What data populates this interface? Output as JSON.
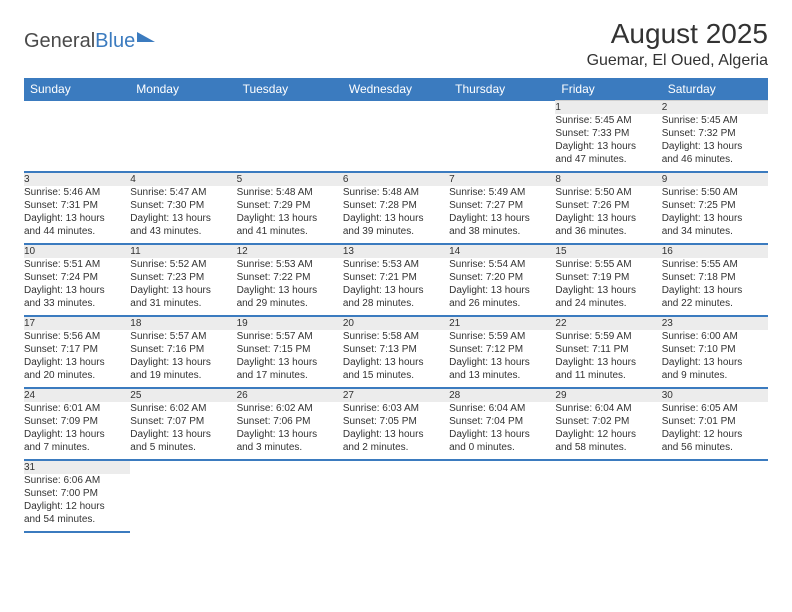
{
  "brand": {
    "word1": "General",
    "word2": "Blue"
  },
  "title": "August 2025",
  "location": "Guemar, El Oued, Algeria",
  "colors": {
    "header_bg": "#3b7bbf",
    "header_fg": "#ffffff",
    "daynum_bg": "#ececec",
    "row_divider": "#3b7bbf",
    "text": "#333333"
  },
  "day_headers": [
    "Sunday",
    "Monday",
    "Tuesday",
    "Wednesday",
    "Thursday",
    "Friday",
    "Saturday"
  ],
  "weeks": [
    {
      "nums": [
        "",
        "",
        "",
        "",
        "",
        "1",
        "2"
      ],
      "cells": [
        null,
        null,
        null,
        null,
        null,
        {
          "sunrise": "5:45 AM",
          "sunset": "7:33 PM",
          "dl1": "Daylight: 13 hours",
          "dl2": "and 47 minutes."
        },
        {
          "sunrise": "5:45 AM",
          "sunset": "7:32 PM",
          "dl1": "Daylight: 13 hours",
          "dl2": "and 46 minutes."
        }
      ]
    },
    {
      "nums": [
        "3",
        "4",
        "5",
        "6",
        "7",
        "8",
        "9"
      ],
      "cells": [
        {
          "sunrise": "5:46 AM",
          "sunset": "7:31 PM",
          "dl1": "Daylight: 13 hours",
          "dl2": "and 44 minutes."
        },
        {
          "sunrise": "5:47 AM",
          "sunset": "7:30 PM",
          "dl1": "Daylight: 13 hours",
          "dl2": "and 43 minutes."
        },
        {
          "sunrise": "5:48 AM",
          "sunset": "7:29 PM",
          "dl1": "Daylight: 13 hours",
          "dl2": "and 41 minutes."
        },
        {
          "sunrise": "5:48 AM",
          "sunset": "7:28 PM",
          "dl1": "Daylight: 13 hours",
          "dl2": "and 39 minutes."
        },
        {
          "sunrise": "5:49 AM",
          "sunset": "7:27 PM",
          "dl1": "Daylight: 13 hours",
          "dl2": "and 38 minutes."
        },
        {
          "sunrise": "5:50 AM",
          "sunset": "7:26 PM",
          "dl1": "Daylight: 13 hours",
          "dl2": "and 36 minutes."
        },
        {
          "sunrise": "5:50 AM",
          "sunset": "7:25 PM",
          "dl1": "Daylight: 13 hours",
          "dl2": "and 34 minutes."
        }
      ]
    },
    {
      "nums": [
        "10",
        "11",
        "12",
        "13",
        "14",
        "15",
        "16"
      ],
      "cells": [
        {
          "sunrise": "5:51 AM",
          "sunset": "7:24 PM",
          "dl1": "Daylight: 13 hours",
          "dl2": "and 33 minutes."
        },
        {
          "sunrise": "5:52 AM",
          "sunset": "7:23 PM",
          "dl1": "Daylight: 13 hours",
          "dl2": "and 31 minutes."
        },
        {
          "sunrise": "5:53 AM",
          "sunset": "7:22 PM",
          "dl1": "Daylight: 13 hours",
          "dl2": "and 29 minutes."
        },
        {
          "sunrise": "5:53 AM",
          "sunset": "7:21 PM",
          "dl1": "Daylight: 13 hours",
          "dl2": "and 28 minutes."
        },
        {
          "sunrise": "5:54 AM",
          "sunset": "7:20 PM",
          "dl1": "Daylight: 13 hours",
          "dl2": "and 26 minutes."
        },
        {
          "sunrise": "5:55 AM",
          "sunset": "7:19 PM",
          "dl1": "Daylight: 13 hours",
          "dl2": "and 24 minutes."
        },
        {
          "sunrise": "5:55 AM",
          "sunset": "7:18 PM",
          "dl1": "Daylight: 13 hours",
          "dl2": "and 22 minutes."
        }
      ]
    },
    {
      "nums": [
        "17",
        "18",
        "19",
        "20",
        "21",
        "22",
        "23"
      ],
      "cells": [
        {
          "sunrise": "5:56 AM",
          "sunset": "7:17 PM",
          "dl1": "Daylight: 13 hours",
          "dl2": "and 20 minutes."
        },
        {
          "sunrise": "5:57 AM",
          "sunset": "7:16 PM",
          "dl1": "Daylight: 13 hours",
          "dl2": "and 19 minutes."
        },
        {
          "sunrise": "5:57 AM",
          "sunset": "7:15 PM",
          "dl1": "Daylight: 13 hours",
          "dl2": "and 17 minutes."
        },
        {
          "sunrise": "5:58 AM",
          "sunset": "7:13 PM",
          "dl1": "Daylight: 13 hours",
          "dl2": "and 15 minutes."
        },
        {
          "sunrise": "5:59 AM",
          "sunset": "7:12 PM",
          "dl1": "Daylight: 13 hours",
          "dl2": "and 13 minutes."
        },
        {
          "sunrise": "5:59 AM",
          "sunset": "7:11 PM",
          "dl1": "Daylight: 13 hours",
          "dl2": "and 11 minutes."
        },
        {
          "sunrise": "6:00 AM",
          "sunset": "7:10 PM",
          "dl1": "Daylight: 13 hours",
          "dl2": "and 9 minutes."
        }
      ]
    },
    {
      "nums": [
        "24",
        "25",
        "26",
        "27",
        "28",
        "29",
        "30"
      ],
      "cells": [
        {
          "sunrise": "6:01 AM",
          "sunset": "7:09 PM",
          "dl1": "Daylight: 13 hours",
          "dl2": "and 7 minutes."
        },
        {
          "sunrise": "6:02 AM",
          "sunset": "7:07 PM",
          "dl1": "Daylight: 13 hours",
          "dl2": "and 5 minutes."
        },
        {
          "sunrise": "6:02 AM",
          "sunset": "7:06 PM",
          "dl1": "Daylight: 13 hours",
          "dl2": "and 3 minutes."
        },
        {
          "sunrise": "6:03 AM",
          "sunset": "7:05 PM",
          "dl1": "Daylight: 13 hours",
          "dl2": "and 2 minutes."
        },
        {
          "sunrise": "6:04 AM",
          "sunset": "7:04 PM",
          "dl1": "Daylight: 13 hours",
          "dl2": "and 0 minutes."
        },
        {
          "sunrise": "6:04 AM",
          "sunset": "7:02 PM",
          "dl1": "Daylight: 12 hours",
          "dl2": "and 58 minutes."
        },
        {
          "sunrise": "6:05 AM",
          "sunset": "7:01 PM",
          "dl1": "Daylight: 12 hours",
          "dl2": "and 56 minutes."
        }
      ]
    },
    {
      "nums": [
        "31",
        "",
        "",
        "",
        "",
        "",
        ""
      ],
      "cells": [
        {
          "sunrise": "6:06 AM",
          "sunset": "7:00 PM",
          "dl1": "Daylight: 12 hours",
          "dl2": "and 54 minutes."
        },
        null,
        null,
        null,
        null,
        null,
        null
      ]
    }
  ],
  "labels": {
    "sunrise": "Sunrise: ",
    "sunset": "Sunset: "
  }
}
